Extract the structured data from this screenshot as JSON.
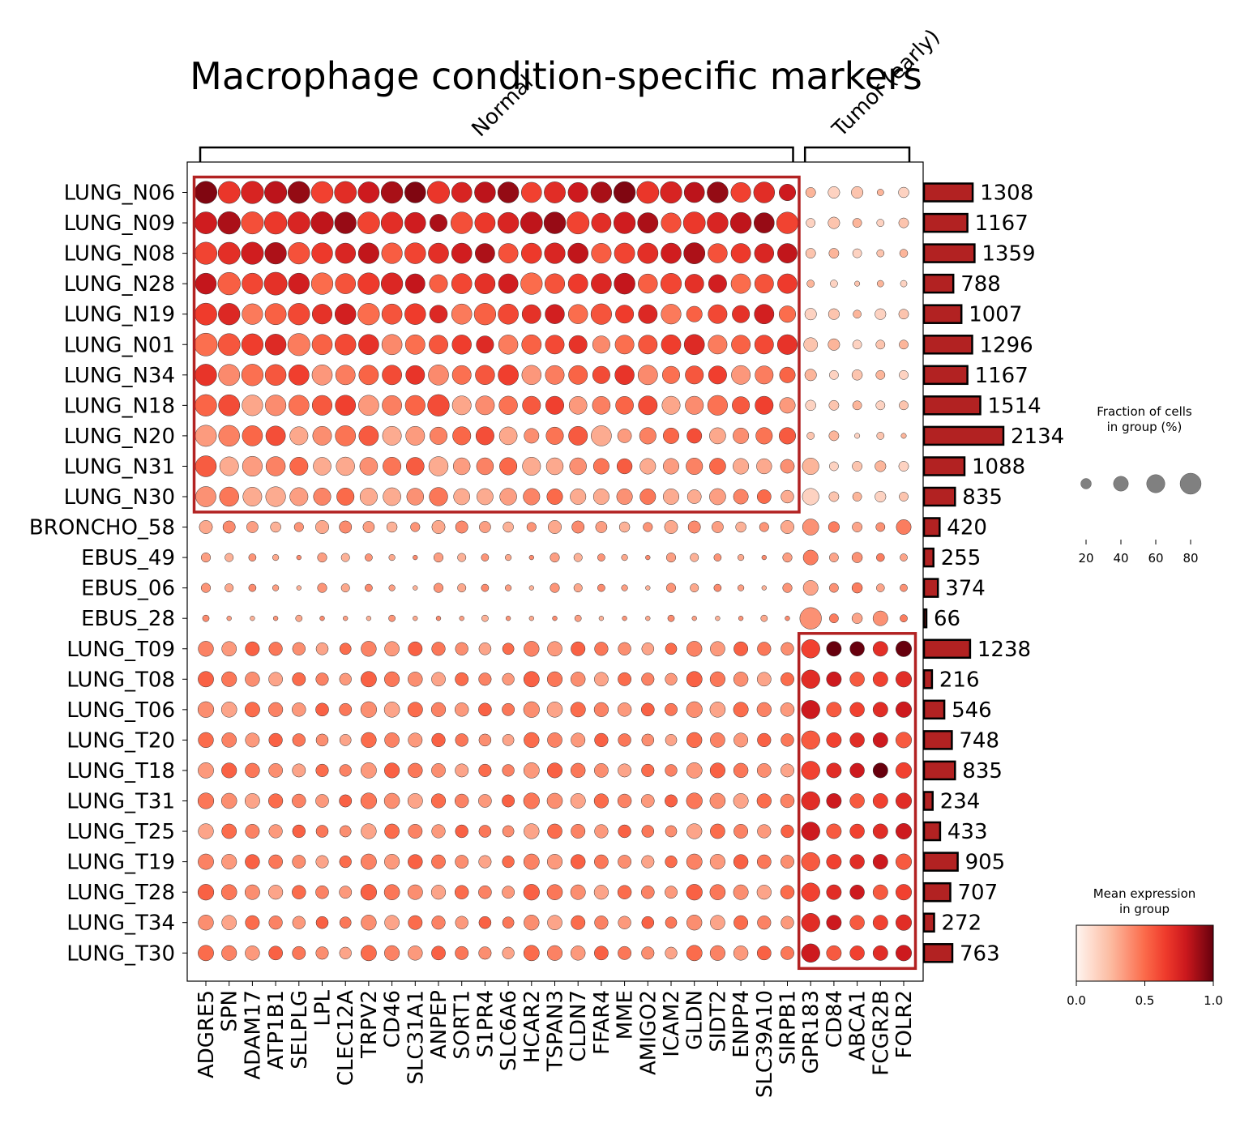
{
  "chart_data": {
    "type": "dotplot",
    "title": "Macrophage condition-specific markers",
    "groups": [
      {
        "label": "Normal",
        "genes": 26
      },
      {
        "label": "Tumor (early)",
        "genes": 5
      }
    ],
    "genes": [
      "ADGRE5",
      "SPN",
      "ADAM17",
      "ATP1B1",
      "SELPLG",
      "LPL",
      "CLEC12A",
      "TRPV2",
      "CD46",
      "SLC31A1",
      "ANPEP",
      "SORT1",
      "S1PR4",
      "SLC6A6",
      "HCAR2",
      "TSPAN3",
      "CLDN7",
      "FFAR4",
      "MME",
      "AMIGO2",
      "ICAM2",
      "GLDN",
      "SIDT2",
      "ENPP4",
      "SLC39A10",
      "SIRPB1",
      "GPR183",
      "CD84",
      "ABCA1",
      "FCGR2B",
      "FOLR2"
    ],
    "samples": [
      "LUNG_N06",
      "LUNG_N09",
      "LUNG_N08",
      "LUNG_N28",
      "LUNG_N19",
      "LUNG_N01",
      "LUNG_N34",
      "LUNG_N18",
      "LUNG_N20",
      "LUNG_N31",
      "LUNG_N30",
      "BRONCHO_58",
      "EBUS_49",
      "EBUS_06",
      "EBUS_28",
      "LUNG_T09",
      "LUNG_T08",
      "LUNG_T06",
      "LUNG_T20",
      "LUNG_T18",
      "LUNG_T31",
      "LUNG_T25",
      "LUNG_T19",
      "LUNG_T28",
      "LUNG_T34",
      "LUNG_T30"
    ],
    "cell_counts": [
      1308,
      1167,
      1359,
      788,
      1007,
      1296,
      1167,
      1514,
      2134,
      1088,
      835,
      420,
      255,
      374,
      66,
      1238,
      216,
      546,
      748,
      835,
      234,
      433,
      905,
      707,
      272,
      763
    ],
    "highlight_boxes": [
      {
        "rows": [
          "LUNG_N06",
          "LUNG_N30"
        ],
        "genes": [
          "ADGRE5",
          "SIRPB1"
        ]
      },
      {
        "rows": [
          "LUNG_T09",
          "LUNG_T30"
        ],
        "genes": [
          "GPR183",
          "FOLR2"
        ]
      }
    ],
    "frac_rows": [
      [
        90,
        88,
        92,
        90,
        88,
        87,
        88,
        82,
        86,
        80,
        90,
        75,
        80,
        80,
        75,
        82,
        72,
        80,
        85,
        88,
        85,
        75,
        80,
        72,
        80,
        50,
        18,
        25,
        25,
        8,
        20
      ],
      [
        88,
        92,
        90,
        92,
        90,
        92,
        85,
        88,
        86,
        80,
        55,
        86,
        76,
        80,
        88,
        86,
        90,
        70,
        85,
        76,
        72,
        88,
        80,
        80,
        75,
        85,
        15,
        25,
        15,
        10,
        18
      ],
      [
        90,
        88,
        90,
        85,
        85,
        80,
        75,
        78,
        78,
        80,
        75,
        75,
        70,
        70,
        75,
        78,
        75,
        72,
        76,
        76,
        75,
        82,
        68,
        70,
        68,
        70,
        18,
        18,
        15,
        10,
        12
      ],
      [
        80,
        92,
        80,
        95,
        80,
        85,
        75,
        85,
        85,
        70,
        60,
        75,
        75,
        70,
        85,
        72,
        70,
        75,
        80,
        68,
        78,
        65,
        60,
        70,
        65,
        70,
        10,
        10,
        5,
        8,
        8
      ],
      [
        88,
        85,
        78,
        82,
        85,
        72,
        80,
        85,
        75,
        80,
        58,
        75,
        85,
        75,
        65,
        68,
        68,
        78,
        60,
        65,
        72,
        45,
        65,
        55,
        70,
        50,
        25,
        22,
        12,
        22,
        18
      ],
      [
        95,
        88,
        85,
        80,
        90,
        75,
        80,
        75,
        75,
        70,
        65,
        68,
        55,
        68,
        70,
        65,
        60,
        55,
        65,
        65,
        70,
        75,
        65,
        65,
        65,
        72,
        35,
        25,
        15,
        15,
        15
      ],
      [
        85,
        82,
        85,
        80,
        76,
        75,
        70,
        70,
        70,
        65,
        75,
        65,
        68,
        75,
        68,
        65,
        65,
        55,
        68,
        70,
        55,
        60,
        60,
        65,
        60,
        45,
        25,
        15,
        20,
        15,
        15
      ],
      [
        85,
        82,
        78,
        78,
        75,
        72,
        75,
        75,
        70,
        72,
        85,
        65,
        65,
        62,
        60,
        60,
        58,
        58,
        58,
        65,
        60,
        60,
        72,
        55,
        60,
        45,
        20,
        18,
        15,
        15,
        15
      ],
      [
        82,
        80,
        75,
        70,
        60,
        65,
        75,
        70,
        65,
        65,
        55,
        60,
        60,
        58,
        40,
        55,
        65,
        75,
        35,
        50,
        45,
        40,
        48,
        45,
        50,
        50,
        10,
        18,
        5,
        10,
        5
      ],
      [
        80,
        65,
        72,
        68,
        60,
        58,
        62,
        58,
        60,
        58,
        68,
        52,
        52,
        55,
        60,
        52,
        52,
        45,
        42,
        45,
        45,
        50,
        48,
        45,
        42,
        35,
        50,
        15,
        18,
        22,
        18
      ],
      [
        75,
        68,
        65,
        72,
        60,
        55,
        55,
        55,
        58,
        52,
        62,
        48,
        48,
        52,
        50,
        45,
        45,
        45,
        45,
        45,
        45,
        35,
        48,
        40,
        35,
        30,
        50,
        18,
        15,
        22,
        15
      ]
    ],
    "color_scale": {
      "min": 0.0,
      "max": 1.0,
      "ticks": [
        "0.0",
        "0.5",
        "1.0"
      ],
      "colors": [
        "#fff5f0",
        "#fcbba1",
        "#fb6a4a",
        "#ef3b2c",
        "#cb181d",
        "#67000d"
      ]
    },
    "size_legend": {
      "title": "Fraction of cells\nin group (%)",
      "values": [
        20,
        40,
        60,
        80
      ]
    },
    "color_legend_title": "Mean expression\nin group",
    "bar_color": "#b22222",
    "box_color": "#b22222"
  }
}
